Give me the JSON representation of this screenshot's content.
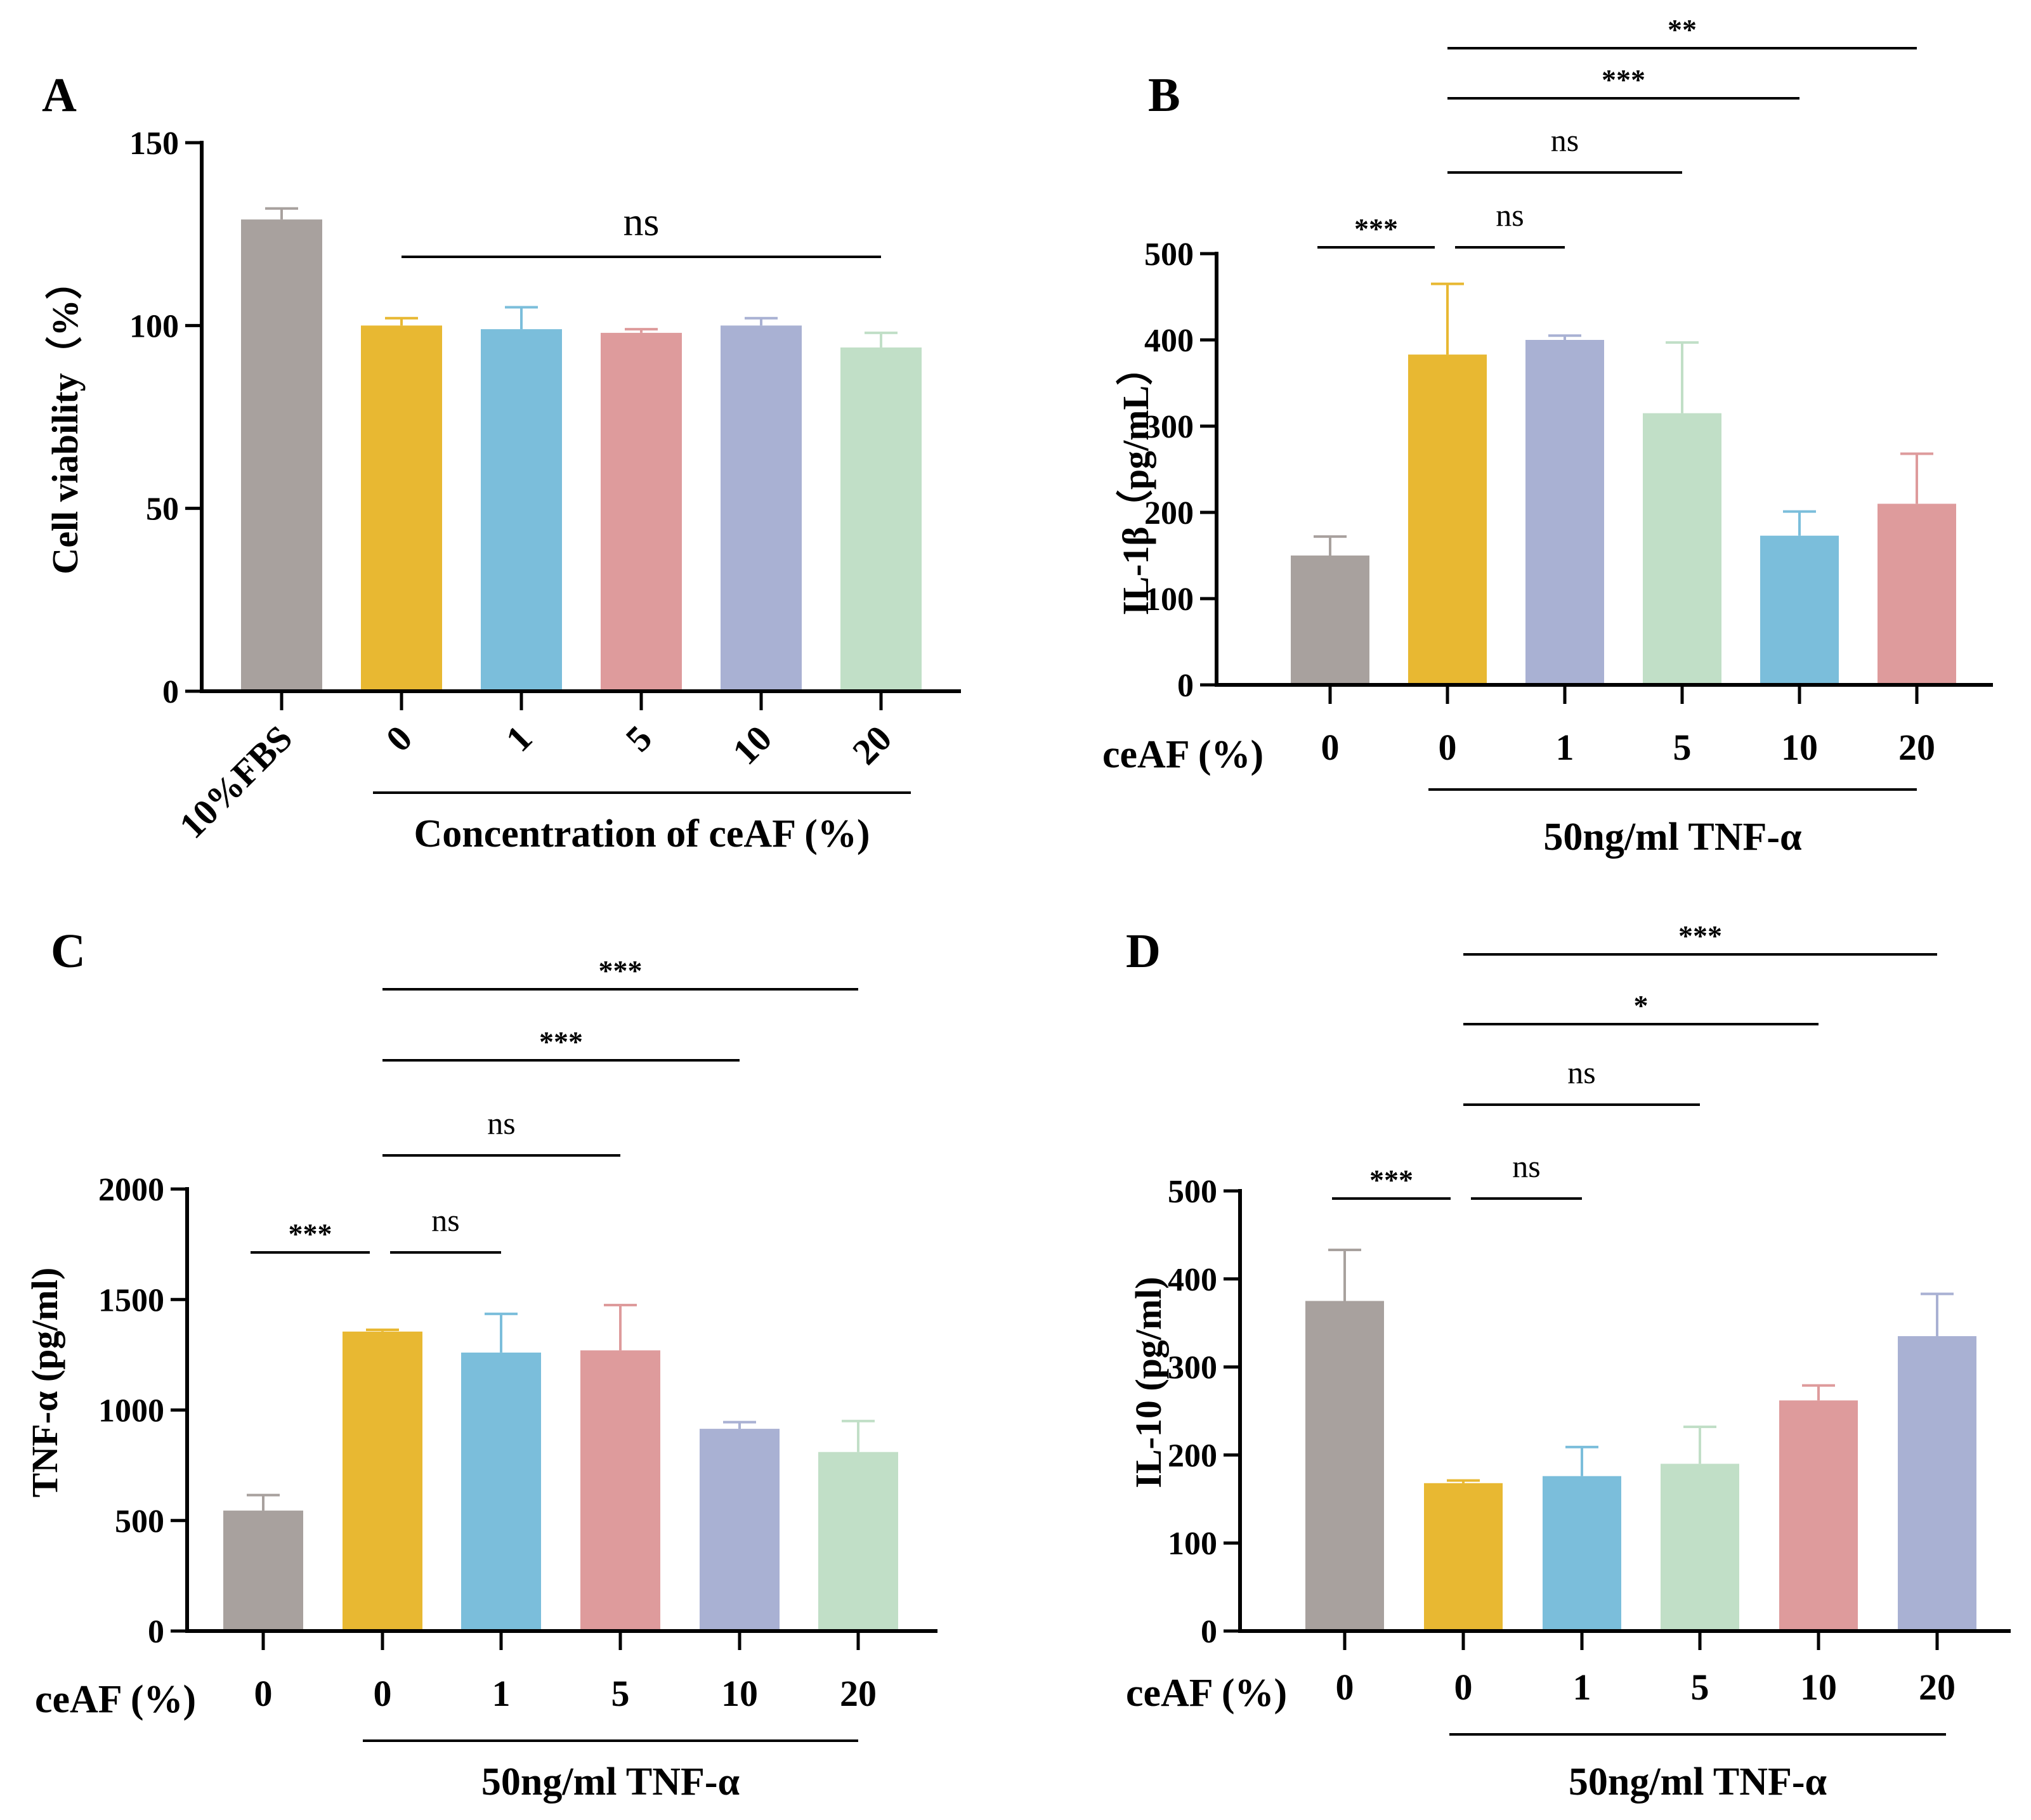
{
  "colors": {
    "gray": "#A8A19E",
    "yellow": "#E8B832",
    "blue": "#7BBEDB",
    "pink": "#DE9B9C",
    "lavender": "#A9B1D3",
    "green": "#C1DFC7",
    "axis": "#000000"
  },
  "chart_data": [
    {
      "panel": "A",
      "type": "bar",
      "ylabel": "Cell viability（%）",
      "ylim": [
        0,
        150
      ],
      "yticks": [
        0,
        50,
        100,
        150
      ],
      "categories": [
        "10%FBS",
        "0",
        "1",
        "5",
        "10",
        "20"
      ],
      "values": [
        129,
        100,
        99,
        98,
        100,
        94
      ],
      "errors": [
        3,
        2,
        6,
        1,
        2,
        4
      ],
      "bar_colors": [
        "gray",
        "yellow",
        "blue",
        "pink",
        "lavender",
        "green"
      ],
      "group_label": "Concentration of ceAF (%)",
      "significance": [
        {
          "from": 1,
          "to": 5,
          "label": "ns"
        }
      ]
    },
    {
      "panel": "B",
      "type": "bar",
      "ylabel": "IL-1β（pg/mL）",
      "ylim": [
        0,
        500
      ],
      "yticks": [
        0,
        100,
        200,
        300,
        400,
        500
      ],
      "row_label": "ceAF (%)",
      "categories": [
        "0",
        "0",
        "1",
        "5",
        "10",
        "20"
      ],
      "values": [
        150,
        383,
        400,
        315,
        173,
        210
      ],
      "errors": [
        22,
        82,
        5,
        82,
        28,
        58
      ],
      "bar_colors": [
        "gray",
        "yellow",
        "lavender",
        "green",
        "blue",
        "pink"
      ],
      "group_label": "50ng/ml TNF-α",
      "significance": [
        {
          "from": 0,
          "to": 1,
          "label": "***"
        },
        {
          "from": 1,
          "to": 2,
          "label": "ns"
        },
        {
          "from": 1,
          "to": 3,
          "label": "ns"
        },
        {
          "from": 1,
          "to": 4,
          "label": "***"
        },
        {
          "from": 1,
          "to": 5,
          "label": "**"
        }
      ]
    },
    {
      "panel": "C",
      "type": "bar",
      "ylabel": "TNF-α (pg/ml)",
      "ylim": [
        0,
        2000
      ],
      "yticks": [
        0,
        500,
        1000,
        1500,
        2000
      ],
      "row_label": "ceAF (%)",
      "categories": [
        "0",
        "0",
        "1",
        "5",
        "10",
        "20"
      ],
      "values": [
        545,
        1355,
        1260,
        1270,
        915,
        810
      ],
      "errors": [
        70,
        8,
        175,
        205,
        30,
        140
      ],
      "bar_colors": [
        "gray",
        "yellow",
        "blue",
        "pink",
        "lavender",
        "green"
      ],
      "group_label": "50ng/ml TNF-α",
      "significance": [
        {
          "from": 0,
          "to": 1,
          "label": "***"
        },
        {
          "from": 1,
          "to": 2,
          "label": "ns"
        },
        {
          "from": 1,
          "to": 3,
          "label": "ns"
        },
        {
          "from": 1,
          "to": 4,
          "label": "***"
        },
        {
          "from": 1,
          "to": 5,
          "label": "***"
        }
      ]
    },
    {
      "panel": "D",
      "type": "bar",
      "ylabel": "IL-10 (pg/ml)",
      "ylim": [
        0,
        500
      ],
      "yticks": [
        0,
        100,
        200,
        300,
        400,
        500
      ],
      "row_label": "ceAF (%)",
      "categories": [
        "0",
        "0",
        "1",
        "5",
        "10",
        "20"
      ],
      "values": [
        375,
        168,
        176,
        190,
        262,
        335
      ],
      "errors": [
        58,
        3,
        33,
        42,
        17,
        48
      ],
      "bar_colors": [
        "gray",
        "yellow",
        "blue",
        "green",
        "pink",
        "lavender"
      ],
      "group_label": "50ng/ml TNF-α",
      "significance": [
        {
          "from": 0,
          "to": 1,
          "label": "***"
        },
        {
          "from": 1,
          "to": 2,
          "label": "ns"
        },
        {
          "from": 1,
          "to": 3,
          "label": "ns"
        },
        {
          "from": 1,
          "to": 4,
          "label": "*"
        },
        {
          "from": 1,
          "to": 5,
          "label": "***"
        }
      ]
    }
  ]
}
